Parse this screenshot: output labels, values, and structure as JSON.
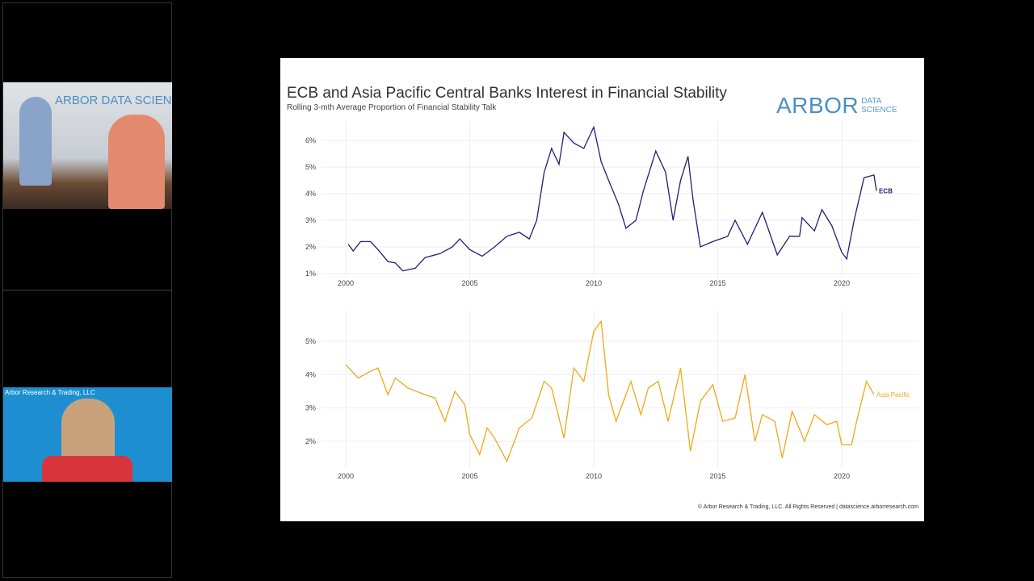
{
  "video_tiles": [
    {
      "logo_text": "ARBOR DATA SCIENCE"
    },
    {
      "logo_text": "Arbor Research & Trading, LLC"
    }
  ],
  "slide": {
    "title": "ECB and Asia Pacific Central Banks Interest in Financial Stability",
    "subtitle": "Rolling 3-mth Average Proportion of Financial Stability Talk",
    "logo_main": "ARBOR",
    "logo_sub": "DATA SCIENCE",
    "footer": "© Arbor Research & Trading, LLC. All Rights Reserved   |   datascience.arborresearch.com"
  },
  "chart_data": [
    {
      "type": "line",
      "title": "ECB and Asia Pacific Central Banks Interest in Financial Stability",
      "subtitle": "Rolling 3-mth Average Proportion of Financial Stability Talk",
      "xlim": [
        2000,
        2022
      ],
      "ylim": [
        1,
        6.5
      ],
      "xticks": [
        "2000",
        "2005",
        "2010",
        "2015",
        "2020"
      ],
      "yticks": [
        "1%",
        "2%",
        "3%",
        "4%",
        "5%",
        "6%"
      ],
      "grid": true,
      "color": "#1f1f7a",
      "series": [
        {
          "name": "ECB",
          "x": [
            2000.1,
            2000.3,
            2000.6,
            2001.0,
            2001.3,
            2001.7,
            2002.0,
            2002.3,
            2002.8,
            2003.2,
            2003.8,
            2004.3,
            2004.6,
            2005.0,
            2005.5,
            2006.0,
            2006.5,
            2007.0,
            2007.4,
            2007.7,
            2008.0,
            2008.3,
            2008.6,
            2008.8,
            2009.2,
            2009.6,
            2010.0,
            2010.3,
            2010.6,
            2011.0,
            2011.3,
            2011.7,
            2012.0,
            2012.5,
            2012.9,
            2013.2,
            2013.5,
            2013.8,
            2014.0,
            2014.3,
            2014.8,
            2015.4,
            2015.7,
            2016.2,
            2016.8,
            2017.4,
            2017.9,
            2018.3,
            2018.4,
            2018.9,
            2019.2,
            2019.6,
            2020.0,
            2020.2,
            2020.5,
            2020.9,
            2021.3,
            2021.4
          ],
          "y": [
            2.1,
            1.85,
            2.2,
            2.2,
            1.9,
            1.45,
            1.4,
            1.1,
            1.2,
            1.6,
            1.75,
            2.0,
            2.3,
            1.9,
            1.65,
            2.0,
            2.4,
            2.55,
            2.3,
            3.0,
            4.8,
            5.7,
            5.1,
            6.3,
            5.9,
            5.7,
            6.5,
            5.2,
            4.5,
            3.6,
            2.7,
            3.0,
            4.1,
            5.6,
            4.8,
            3.0,
            4.5,
            5.4,
            3.8,
            2.0,
            2.2,
            2.4,
            3.0,
            2.1,
            3.3,
            1.7,
            2.4,
            2.4,
            3.1,
            2.6,
            3.4,
            2.8,
            1.8,
            1.55,
            3.0,
            4.6,
            4.7,
            4.1
          ]
        }
      ]
    },
    {
      "type": "line",
      "xlim": [
        2000,
        2022
      ],
      "ylim": [
        1.3,
        5.8
      ],
      "xticks": [
        "2000",
        "2005",
        "2010",
        "2015",
        "2020"
      ],
      "yticks": [
        "2%",
        "3%",
        "4%",
        "5%"
      ],
      "grid": true,
      "color": "#f0a818",
      "series": [
        {
          "name": "Asia Pacific",
          "x": [
            2000.0,
            2000.5,
            2001.0,
            2001.3,
            2001.7,
            2002.0,
            2002.5,
            2003.2,
            2003.6,
            2004.0,
            2004.4,
            2004.8,
            2005.0,
            2005.4,
            2005.7,
            2006.0,
            2006.5,
            2007.0,
            2007.5,
            2008.0,
            2008.3,
            2008.8,
            2009.2,
            2009.6,
            2010.0,
            2010.3,
            2010.6,
            2010.9,
            2011.5,
            2011.9,
            2012.2,
            2012.6,
            2013.0,
            2013.5,
            2013.9,
            2014.3,
            2014.8,
            2015.2,
            2015.7,
            2016.1,
            2016.5,
            2016.8,
            2017.3,
            2017.6,
            2018.0,
            2018.5,
            2018.9,
            2019.4,
            2019.8,
            2020.0,
            2020.4,
            2020.6,
            2021.0,
            2021.3
          ],
          "y": [
            4.3,
            3.9,
            4.1,
            4.2,
            3.4,
            3.9,
            3.6,
            3.4,
            3.3,
            2.6,
            3.5,
            3.1,
            2.2,
            1.6,
            2.4,
            2.1,
            1.4,
            2.4,
            2.7,
            3.8,
            3.6,
            2.1,
            4.2,
            3.8,
            5.3,
            5.6,
            3.4,
            2.6,
            3.8,
            2.8,
            3.6,
            3.8,
            2.6,
            4.2,
            1.7,
            3.2,
            3.7,
            2.6,
            2.7,
            4.0,
            2.0,
            2.8,
            2.6,
            1.5,
            2.9,
            2.0,
            2.8,
            2.5,
            2.6,
            1.9,
            1.9,
            2.6,
            3.8,
            3.4
          ]
        }
      ]
    }
  ]
}
